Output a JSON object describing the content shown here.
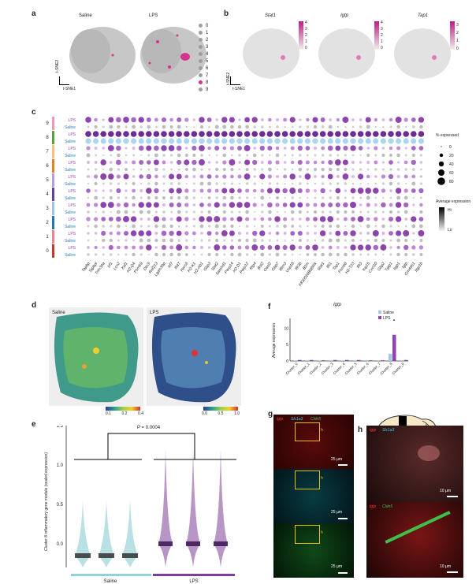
{
  "panel_labels": {
    "a": "a",
    "b": "b",
    "c": "c",
    "d": "d",
    "e": "e",
    "f": "f",
    "g": "g",
    "h": "h"
  },
  "panel_a": {
    "titles": [
      "Saline",
      "LPS"
    ],
    "legend": [
      "0",
      "1",
      "2",
      "3",
      "4",
      "5",
      "6",
      "7",
      "8",
      "9"
    ],
    "legend_colors": [
      "#9e9e9e",
      "#9e9e9e",
      "#9e9e9e",
      "#9e9e9e",
      "#9e9e9e",
      "#9e9e9e",
      "#9e9e9e",
      "#9e9e9e",
      "#d6338f",
      "#9e9e9e"
    ],
    "axis_y": "t-SNE2",
    "axis_x": "t-SNE1"
  },
  "panel_b": {
    "genes": [
      "Stat1",
      "Igtp",
      "Tap1"
    ],
    "scales": [
      [
        "4",
        "3",
        "2",
        "1",
        "0"
      ],
      [
        "4",
        "3",
        "2",
        "1",
        "0"
      ],
      [
        "3",
        "2",
        "1",
        "0"
      ]
    ],
    "axis_y": "t-SNE2",
    "axis_x": "t-SNE1"
  },
  "panel_c": {
    "rows": [
      {
        "cluster": "9",
        "cond": "LPS"
      },
      {
        "cluster": "9",
        "cond": "Saline"
      },
      {
        "cluster": "8",
        "cond": "LPS"
      },
      {
        "cluster": "8",
        "cond": "Saline"
      },
      {
        "cluster": "7",
        "cond": "LPS"
      },
      {
        "cluster": "7",
        "cond": "Saline"
      },
      {
        "cluster": "6",
        "cond": "LPS"
      },
      {
        "cluster": "6",
        "cond": "Saline"
      },
      {
        "cluster": "5",
        "cond": "LPS"
      },
      {
        "cluster": "5",
        "cond": "Saline"
      },
      {
        "cluster": "4",
        "cond": "LPS"
      },
      {
        "cluster": "4",
        "cond": "Saline"
      },
      {
        "cluster": "3",
        "cond": "LPS"
      },
      {
        "cluster": "3",
        "cond": "Saline"
      },
      {
        "cluster": "2",
        "cond": "LPS"
      },
      {
        "cluster": "2",
        "cond": "Saline"
      },
      {
        "cluster": "1",
        "cond": "LPS"
      },
      {
        "cluster": "1",
        "cond": "Saline"
      },
      {
        "cluster": "0",
        "cond": "LPS"
      },
      {
        "cluster": "0",
        "cond": "Saline"
      }
    ],
    "genes": [
      "Tapbp",
      "Tapbpl",
      "Trim30a",
      "Irf1",
      "Lcn2",
      "Xaf1",
      "H2-Q4",
      "Psmb9",
      "Dtx3l",
      "Rnf213",
      "Lgals3bp",
      "Irf7",
      "Ifi47",
      "Herc6",
      "H2-K1",
      "H2-Ab1",
      "Gbp3",
      "Stat2",
      "Samhd1",
      "Parp14",
      "H2-D1",
      "Parp12",
      "Rtp4",
      "Bst2",
      "Oasl2",
      "Gbp7",
      "Ifitm3",
      "Usp18",
      "Ifit3b",
      "B2m",
      "F830016B08Rik",
      "Stat1",
      "Ifit1",
      "Tap1",
      "Psmb8",
      "H2-T23",
      "Ifit3",
      "Isg15",
      "Cxcl10",
      "Gbp2",
      "Tgtp1",
      "Iigp1",
      "Igtp",
      "Gm4951",
      "Iigp1b"
    ],
    "legend_size_title": "% expressed",
    "legend_sizes": [
      "0",
      "20",
      "40",
      "60",
      "80"
    ],
    "legend_color_title": "Average expression",
    "legend_color_hi": "Hi",
    "legend_color_lo": "Lo",
    "cluster_colors": [
      "#c0392b",
      "#e7849a",
      "#1f77b4",
      "#9ec5e8",
      "#6a3d9a",
      "#b49ddb",
      "#e67e22",
      "#f4c27c",
      "#5f9e3a",
      "#e79bc0"
    ]
  },
  "panel_d": {
    "titles": [
      "Saline",
      "LPS"
    ],
    "scale1": [
      "0.1",
      "0.2",
      "0.4"
    ],
    "scale2": [
      "0.0",
      "0.5",
      "1.0"
    ]
  },
  "panel_e": {
    "pvalue": "P = 0.0004",
    "ylabel": "Cluster 8 inflammatory gene module (scaled expression)",
    "yticks": [
      "1.5",
      "1.0",
      "0.5",
      "0.0"
    ],
    "groups": [
      "Saline",
      "LPS"
    ],
    "group_colors": [
      "#8fd3d9",
      "#7b3f98"
    ]
  },
  "panel_f": {
    "title": "Igtp",
    "ylabel": "Average expression",
    "legend": [
      "Saline",
      "LPS"
    ],
    "yticks": [
      "10",
      "5",
      "0"
    ],
    "categories": [
      "Cluster_0",
      "Cluster_1",
      "Cluster_2",
      "Cluster_3",
      "Cluster_4",
      "Cluster_5",
      "Cluster_6",
      "Cluster_7",
      "Cluster_8",
      "Cluster_9"
    ],
    "colors": [
      "#a6c8e8",
      "#8e44ad"
    ]
  },
  "chart_data": {
    "type": "bar",
    "title": "Igtp",
    "ylabel": "Average expression",
    "categories": [
      "Cluster_0",
      "Cluster_1",
      "Cluster_2",
      "Cluster_3",
      "Cluster_4",
      "Cluster_5",
      "Cluster_6",
      "Cluster_7",
      "Cluster_8",
      "Cluster_9"
    ],
    "series": [
      {
        "name": "Saline",
        "values": [
          0.05,
          0.05,
          0.05,
          0.05,
          0.05,
          0.05,
          0.05,
          0.05,
          2.2,
          0.05
        ]
      },
      {
        "name": "LPS",
        "values": [
          0.3,
          0.3,
          0.2,
          0.3,
          0.3,
          0.3,
          0.2,
          0.2,
          8.0,
          0.3
        ]
      }
    ],
    "ylim": [
      0,
      13
    ]
  },
  "panel_g": {
    "titles": [
      "Igtp",
      "Slc1a3",
      "Cldn5"
    ],
    "title_colors": [
      "#ff3b3b",
      "#35d0e6",
      "#36c25a"
    ],
    "scale": "25 µm",
    "inset": "h"
  },
  "panel_h": {
    "titles_top": [
      "Igtp",
      "Slc1a3"
    ],
    "titles_bottom": [
      "Igtp",
      "Cldn5"
    ],
    "scale": "10 µm"
  }
}
